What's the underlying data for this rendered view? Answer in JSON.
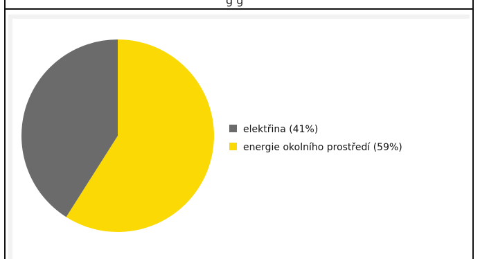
{
  "header": {
    "text": "g   g"
  },
  "chart_data": {
    "type": "pie",
    "slices": [
      {
        "label": "elektřina (41%)",
        "value": 41,
        "color": "#6b6b6b"
      },
      {
        "label": "energie okolního prostředí (59%)",
        "value": 59,
        "color": "#fad905"
      }
    ],
    "legend_position": "right",
    "start_angle": "top",
    "direction": "clockwise"
  }
}
